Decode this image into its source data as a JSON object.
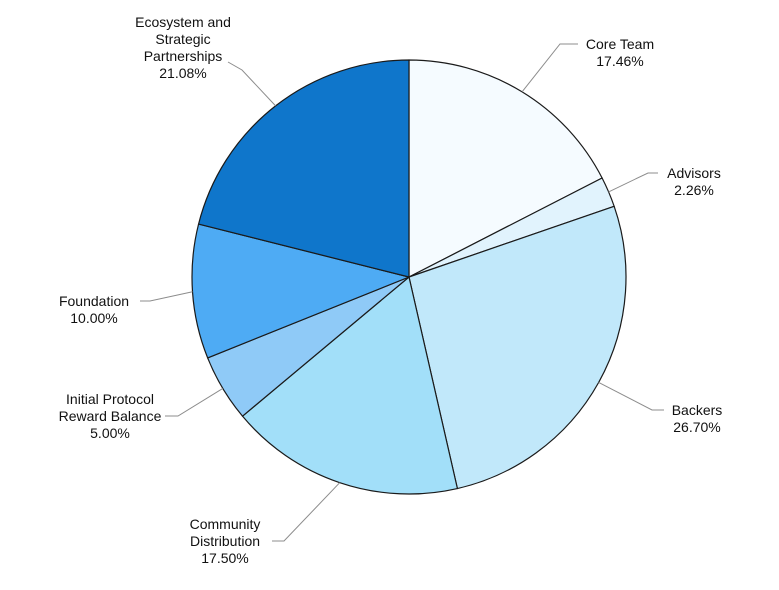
{
  "chart_data": {
    "type": "pie",
    "title": "",
    "legend": "none",
    "slices": [
      {
        "lines": [
          "Core Team"
        ],
        "pct_label": "17.46%",
        "value": 17.46,
        "color": "#f5fbff"
      },
      {
        "lines": [
          "Advisors"
        ],
        "pct_label": "2.26%",
        "value": 2.26,
        "color": "#e1f3fd"
      },
      {
        "lines": [
          "Backers"
        ],
        "pct_label": "26.70%",
        "value": 26.7,
        "color": "#c1e8fa"
      },
      {
        "lines": [
          "Community",
          "Distribution"
        ],
        "pct_label": "17.50%",
        "value": 17.5,
        "color": "#a2dff9"
      },
      {
        "lines": [
          "Initial Protocol",
          "Reward Balance"
        ],
        "pct_label": "5.00%",
        "value": 5.0,
        "color": "#8fcaf7"
      },
      {
        "lines": [
          "Foundation"
        ],
        "pct_label": "10.00%",
        "value": 10.0,
        "color": "#4eabf4"
      },
      {
        "lines": [
          "Ecosystem and",
          "Strategic",
          "Partnerships"
        ],
        "pct_label": "21.08%",
        "value": 21.08,
        "color": "#0f76cb"
      }
    ]
  }
}
